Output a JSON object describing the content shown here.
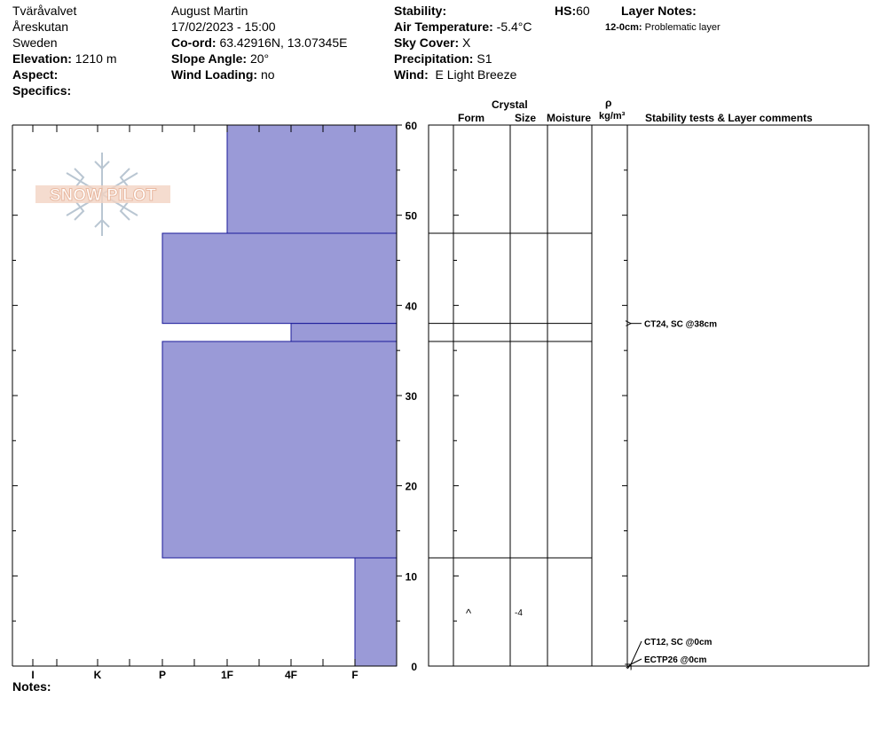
{
  "header": {
    "location": "Tväråvalvet",
    "area": "Åreskutan",
    "country": "Sweden",
    "elevation_label": "Elevation:",
    "elevation": "1210 m",
    "aspect_label": "Aspect:",
    "aspect": "",
    "specifics_label": "Specifics:",
    "observer": "August  Martin",
    "datetime": "17/02/2023 - 15:00",
    "coord_label": "Co-ord:",
    "coord": "63.42916N, 13.07345E",
    "slope_label": "Slope Angle:",
    "slope": "20°",
    "wind_loading_label": "Wind Loading:",
    "wind_loading": "no",
    "stability_label": "Stability:",
    "air_temp_label": "Air Temperature:",
    "air_temp": "-5.4°C",
    "sky_label": "Sky Cover:",
    "sky": "X",
    "precip_label": "Precipitation:",
    "precip": "S1",
    "wind_label": "Wind:",
    "wind": "E Light Breeze",
    "hs_label": "HS:",
    "hs": "60",
    "layer_notes_label": "Layer Notes:",
    "layer_note_range": "12-0cm:",
    "layer_note_text": "Problematic layer"
  },
  "columns": {
    "crystal": "Crystal",
    "form": "Form",
    "size": "Size",
    "moisture": "Moisture",
    "rho": "ρ",
    "density_unit": "kg/m³",
    "stability": "Stability tests & Layer comments"
  },
  "notes_label": "Notes:",
  "logo_text": "SNOW PILOT",
  "colors": {
    "layer_fill": "#9a9ad7",
    "layer_stroke": "#1a1a9a",
    "frame": "#000000",
    "logo": "#e8b8a0",
    "logo_flake": "#b9c6d2"
  },
  "chart_data": {
    "type": "bar",
    "orientation": "horizontal",
    "y_range": [
      0,
      60
    ],
    "y_ticks": [
      0,
      10,
      20,
      30,
      40,
      50,
      60
    ],
    "hardness_categories": [
      "I",
      "K",
      "P",
      "1F",
      "4F",
      "F"
    ],
    "hardness_scale_note": "bars extend from right edge (F) leftward to hand hardness",
    "layers": [
      {
        "bottom": 48,
        "top": 60,
        "hardness": "1F"
      },
      {
        "bottom": 38,
        "top": 48,
        "hardness": "P"
      },
      {
        "bottom": 36,
        "top": 38,
        "hardness": "4F"
      },
      {
        "bottom": 12,
        "top": 36,
        "hardness": "P"
      },
      {
        "bottom": 0,
        "top": 12,
        "hardness": "F"
      }
    ],
    "layer_boundaries": [
      60,
      48,
      38,
      36,
      12
    ],
    "crystal_form_symbol": {
      "height": 6,
      "symbol": "^"
    },
    "crystal_size_label": {
      "height": 6,
      "text": "-4"
    },
    "stability_tests": [
      {
        "height": 38,
        "text": "CT24, SC @38cm"
      },
      {
        "height": 0,
        "text": "CT12, SC @0cm"
      },
      {
        "height": 0,
        "text": "ECTP26 @0cm"
      }
    ]
  }
}
